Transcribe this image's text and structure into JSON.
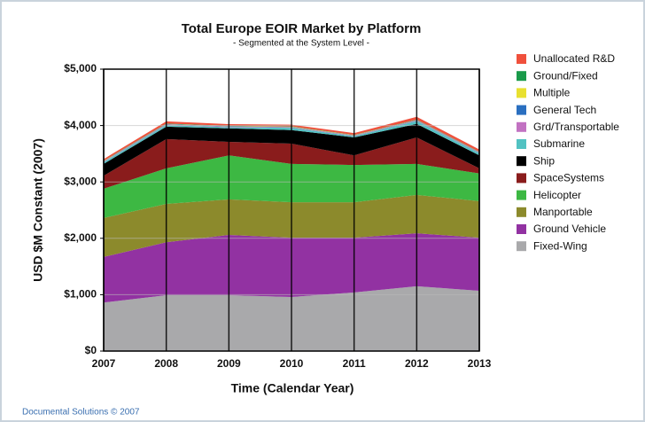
{
  "chart_data": {
    "type": "stacked_area",
    "title": "Total Europe EOIR Market by Platform",
    "subtitle": "- Segmented at the System Level -",
    "x_label": "Time (Calendar Year)",
    "y_label": "USD $M Constant (2007)",
    "footer": "Documental Solutions © 2007",
    "categories": [
      "2007",
      "2008",
      "2009",
      "2010",
      "2011",
      "2012",
      "2013"
    ],
    "series": [
      {
        "name": "Fixed-Wing",
        "color": "#a9a9ab",
        "values": [
          860,
          990,
          990,
          960,
          1040,
          1150,
          1070
        ]
      },
      {
        "name": "Ground Vehicle",
        "color": "#9232a2",
        "values": [
          810,
          940,
          1070,
          1050,
          970,
          940,
          940
        ]
      },
      {
        "name": "Manportable",
        "color": "#8c8a2c",
        "values": [
          690,
          680,
          630,
          630,
          630,
          680,
          650
        ]
      },
      {
        "name": "Helicopter",
        "color": "#3db843",
        "values": [
          520,
          630,
          780,
          680,
          660,
          550,
          490
        ]
      },
      {
        "name": "SpaceSystems",
        "color": "#8a1c1c",
        "values": [
          230,
          520,
          240,
          360,
          170,
          470,
          90
        ]
      },
      {
        "name": "Ship",
        "color": "#000000",
        "values": [
          210,
          220,
          240,
          240,
          320,
          240,
          230
        ]
      },
      {
        "name": "Submarine",
        "color": "#52c2c2",
        "values": [
          30,
          30,
          20,
          40,
          20,
          50,
          40
        ]
      },
      {
        "name": "Grd/Transportable",
        "color": "#c272c2",
        "values": [
          10,
          10,
          10,
          10,
          10,
          10,
          10
        ]
      },
      {
        "name": "General Tech",
        "color": "#2a6fc0",
        "values": [
          5,
          5,
          5,
          5,
          5,
          5,
          5
        ]
      },
      {
        "name": "Multiple",
        "color": "#e8e030",
        "values": [
          5,
          5,
          5,
          5,
          5,
          5,
          5
        ]
      },
      {
        "name": "Ground/Fixed",
        "color": "#1a9a4a",
        "values": [
          5,
          5,
          5,
          5,
          5,
          5,
          5
        ]
      },
      {
        "name": "Unallocated R&D",
        "color": "#f0503c",
        "values": [
          30,
          40,
          30,
          30,
          30,
          50,
          40
        ]
      }
    ],
    "ylim": [
      0,
      5000
    ],
    "yticks": [
      {
        "value": 0,
        "label": "$0"
      },
      {
        "value": 1000,
        "label": "$1,000"
      },
      {
        "value": 2000,
        "label": "$2,000"
      },
      {
        "value": 3000,
        "label": "$3,000"
      },
      {
        "value": 4000,
        "label": "$4,000"
      },
      {
        "value": 5000,
        "label": "$5,000"
      }
    ],
    "grid": true
  }
}
